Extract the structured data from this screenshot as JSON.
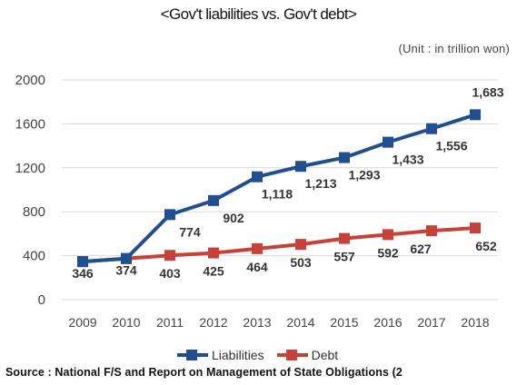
{
  "chart_data": {
    "type": "line",
    "title": "<Gov't liabilities vs. Gov't debt>",
    "unit_note": "(Unit : in trillion won)",
    "categories": [
      "2009",
      "2010",
      "2011",
      "2012",
      "2013",
      "2014",
      "2015",
      "2016",
      "2017",
      "2018"
    ],
    "y_ticks": [
      "2000",
      "1600",
      "1200",
      "800",
      "400",
      "0"
    ],
    "ylim": [
      0,
      2000
    ],
    "grid": true,
    "legend_position": "bottom",
    "series": [
      {
        "name": "Liabilities",
        "color": "#1f4e91",
        "values": [
          346,
          374,
          774,
          902,
          1118,
          1213,
          1293,
          1433,
          1556,
          1683
        ],
        "labels": [
          "",
          "",
          "774",
          "902",
          "1,118",
          "1,213",
          "1,293",
          "1,433",
          "1,556",
          "1,683"
        ]
      },
      {
        "name": "Debt",
        "color": "#c8403a",
        "values": [
          346,
          374,
          403,
          425,
          464,
          503,
          557,
          592,
          627,
          652
        ],
        "labels": [
          "346",
          "374",
          "403",
          "425",
          "464",
          "503",
          "557",
          "592",
          "627",
          "652"
        ]
      }
    ],
    "source": "Source : National F/S and Report on Management of State Obligations (2"
  }
}
